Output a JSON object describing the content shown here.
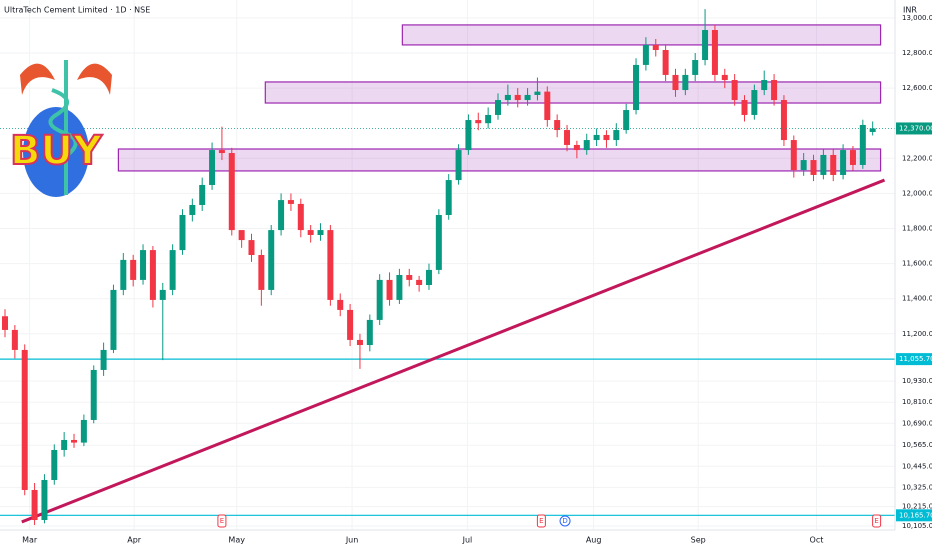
{
  "chart_data": {
    "type": "candlestick",
    "title": "UltraTech Cement Limited · 1D · NSE",
    "currency": "INR",
    "logo": "BUY",
    "up_color": "#089981",
    "down_color": "#f23645",
    "open": [
      11300,
      11222,
      11108,
      10310,
      10139,
      10367,
      10538,
      10595,
      10580,
      10709,
      10994,
      11108,
      11450,
      11621,
      11507,
      11677,
      11393,
      11450,
      11677,
      11877,
      11934,
      12048,
      12247,
      12230,
      11791,
      11734,
      11649,
      11450,
      11791,
      11962,
      11940,
      11791,
      11763,
      11791,
      11393,
      11336,
      11165,
      11136,
      11279,
      11507,
      11393,
      11535,
      11507,
      11478,
      11564,
      11877,
      12076,
      12247,
      12418,
      12400,
      12447,
      12532,
      12561,
      12532,
      12561,
      12580,
      12418,
      12361,
      12276,
      12247,
      12304,
      12333,
      12304,
      12361,
      12475,
      12732,
      12846,
      12817,
      12675,
      12589,
      12675,
      12760,
      12931,
      12675,
      12646,
      12532,
      12447,
      12589,
      12646,
      12532,
      12304,
      12133,
      12190,
      12105,
      12219,
      12105,
      12247,
      12162,
      12350
    ],
    "high": [
      11340,
      11250,
      11140,
      10350,
      10400,
      10570,
      10640,
      10630,
      10740,
      11020,
      11150,
      11480,
      11660,
      11650,
      11710,
      11700,
      11490,
      11710,
      11910,
      11970,
      12090,
      12290,
      12380,
      12260,
      11780,
      11770,
      11680,
      11820,
      12000,
      12000,
      11970,
      11820,
      11830,
      11820,
      11430,
      11370,
      11200,
      11310,
      11540,
      11550,
      11570,
      11570,
      11530,
      11600,
      11910,
      12110,
      12280,
      12450,
      12460,
      12490,
      12570,
      12620,
      12600,
      12600,
      12660,
      12610,
      12450,
      12390,
      12300,
      12340,
      12370,
      12360,
      12400,
      12510,
      12770,
      12890,
      12880,
      12850,
      12710,
      12710,
      12800,
      13050,
      12960,
      12710,
      12680,
      12560,
      12620,
      12700,
      12680,
      12560,
      12330,
      12230,
      12220,
      12250,
      12250,
      12280,
      12270,
      12420,
      12410
    ],
    "low": [
      11180,
      11060,
      10280,
      10110,
      10120,
      10340,
      10500,
      10550,
      10560,
      10690,
      10960,
      11090,
      11420,
      11470,
      11480,
      11350,
      11050,
      11420,
      11650,
      11840,
      11900,
      12020,
      12190,
      11760,
      11690,
      11610,
      11360,
      11420,
      11760,
      11900,
      11750,
      11720,
      11730,
      11360,
      11300,
      11130,
      11000,
      11100,
      11250,
      11360,
      11370,
      11470,
      11440,
      11450,
      11540,
      11850,
      12050,
      12220,
      12360,
      12370,
      12420,
      12500,
      12490,
      12500,
      12530,
      12380,
      12320,
      12240,
      12200,
      12220,
      12270,
      12260,
      12270,
      12340,
      12450,
      12700,
      12780,
      12640,
      12550,
      12560,
      12640,
      12730,
      12640,
      12600,
      12500,
      12410,
      12420,
      12560,
      12500,
      12270,
      12090,
      12100,
      12070,
      12080,
      12070,
      12080,
      12130,
      12140,
      12330
    ],
    "close": [
      11222,
      11108,
      10310,
      10139,
      10367,
      10538,
      10595,
      10580,
      10709,
      10994,
      11108,
      11450,
      11621,
      11507,
      11677,
      11393,
      11450,
      11677,
      11877,
      11934,
      12048,
      12247,
      12230,
      11791,
      11734,
      11649,
      11450,
      11791,
      11962,
      11940,
      11791,
      11763,
      11791,
      11393,
      11336,
      11165,
      11136,
      11279,
      11507,
      11393,
      11535,
      11507,
      11478,
      11564,
      11877,
      12076,
      12247,
      12418,
      12400,
      12447,
      12532,
      12561,
      12532,
      12561,
      12580,
      12418,
      12361,
      12276,
      12247,
      12304,
      12333,
      12304,
      12361,
      12475,
      12732,
      12846,
      12817,
      12675,
      12589,
      12675,
      12760,
      12931,
      12675,
      12646,
      12532,
      12447,
      12589,
      12646,
      12532,
      12304,
      12133,
      12190,
      12105,
      12219,
      12105,
      12247,
      12162,
      12390,
      12370
    ],
    "ylim": [
      10082,
      13102
    ],
    "yticks": [
      {
        "value": 13000,
        "label": "13,000.00"
      },
      {
        "value": 12800,
        "label": "12,800.00"
      },
      {
        "value": 12600,
        "label": "12,600.00"
      },
      {
        "value": 12200,
        "label": "12,200.00"
      },
      {
        "value": 12000,
        "label": "12,000.00"
      },
      {
        "value": 11800,
        "label": "11,800.00"
      },
      {
        "value": 11600,
        "label": "11,600.00"
      },
      {
        "value": 11400,
        "label": "11,400.00"
      },
      {
        "value": 11200,
        "label": "11,200.00"
      },
      {
        "value": 10930,
        "label": "10,930.00"
      },
      {
        "value": 10810,
        "label": "10,810.00"
      },
      {
        "value": 10690,
        "label": "10,690.00"
      },
      {
        "value": 10565,
        "label": "10,565.00"
      },
      {
        "value": 10445,
        "label": "10,445.00"
      },
      {
        "value": 10325,
        "label": "10,325.00"
      },
      {
        "value": 10215,
        "label": "10,215.00"
      },
      {
        "value": 10105,
        "label": "10,105.00"
      }
    ],
    "xticks": [
      {
        "value": 2.5,
        "label": "Mar"
      },
      {
        "value": 13.1,
        "label": "Apr"
      },
      {
        "value": 23.5,
        "label": "May"
      },
      {
        "value": 35.2,
        "label": "Jun"
      },
      {
        "value": 46.9,
        "label": "Jul"
      },
      {
        "value": 59.7,
        "label": "Aug"
      },
      {
        "value": 70.3,
        "label": "Sep"
      },
      {
        "value": 82.3,
        "label": "Oct"
      }
    ],
    "zones": [
      {
        "low": 12846,
        "high": 12960,
        "start": 40.3,
        "end": 88.8
      },
      {
        "low": 12515,
        "high": 12635,
        "start": 26.4,
        "end": 88.8
      },
      {
        "low": 12128,
        "high": 12253,
        "start": 11.5,
        "end": 88.8
      }
    ],
    "zone_color": "#9c27b0",
    "trendline": {
      "start": [
        1.7,
        10128
      ],
      "end": [
        89.2,
        12076
      ],
      "color": "#c2185b"
    },
    "levels": [
      {
        "value": 11055.7,
        "label": "11,055.70"
      },
      {
        "value": 10165.7,
        "label": "10,165.70"
      }
    ],
    "level_color": "#00bcd4",
    "last_price": {
      "value": 12370,
      "label": "12,370.00"
    },
    "events": [
      {
        "index": 22,
        "label": "E"
      },
      {
        "index": 54.4,
        "label": "E"
      },
      {
        "index": 56.8,
        "label": "D"
      },
      {
        "index": 88.4,
        "label": "E"
      }
    ]
  }
}
